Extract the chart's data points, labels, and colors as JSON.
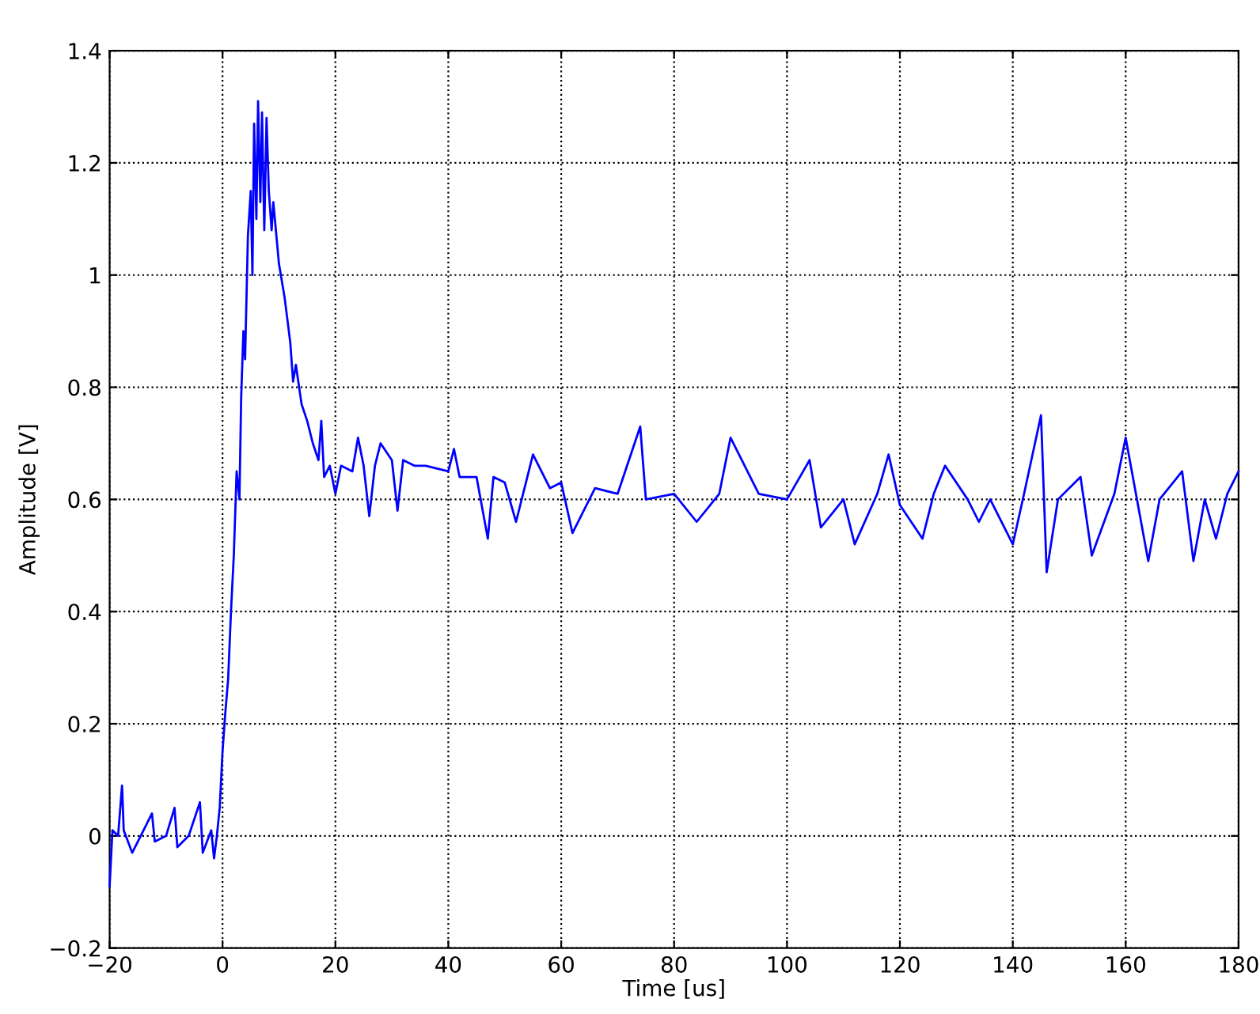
{
  "chart_data": {
    "type": "line",
    "xlabel": "Time [us]",
    "ylabel": "Amplitude [V]",
    "xlim": [
      -20,
      180
    ],
    "ylim": [
      -0.2,
      1.4
    ],
    "xticks": [
      {
        "value": -20,
        "label": "−20"
      },
      0,
      20,
      40,
      60,
      80,
      100,
      120,
      140,
      160,
      180
    ],
    "yticks": [
      {
        "value": -0.2,
        "label": "−0.2"
      },
      0,
      0.2,
      0.4,
      0.6,
      0.8,
      1,
      1.2,
      1.4
    ],
    "grid": true,
    "marker": "none",
    "line_style": "solid",
    "series": [
      {
        "color": "#0000ff",
        "x": [
          -20,
          -19.5,
          -18.5,
          -17.8,
          -17.5,
          -16,
          -14,
          -12.5,
          -12,
          -10,
          -8.5,
          -8,
          -6,
          -4,
          -3.5,
          -2,
          -1.5,
          -1,
          -0.5,
          0,
          0.5,
          1,
          1.5,
          2,
          2.5,
          3,
          3.3,
          3.7,
          4,
          4.5,
          5,
          5.3,
          5.6,
          6,
          6.3,
          6.7,
          7,
          7.4,
          7.8,
          8.2,
          8.7,
          9,
          10,
          11,
          12,
          12.5,
          13,
          14,
          15,
          16,
          17,
          17.5,
          18,
          19,
          20,
          21,
          23,
          24,
          25,
          26,
          27,
          28,
          30,
          31,
          32,
          34,
          36,
          40,
          41,
          42,
          45,
          47,
          48,
          50,
          52,
          55,
          58,
          60,
          62,
          66,
          70,
          74,
          75,
          80,
          84,
          88,
          90,
          95,
          100,
          104,
          106,
          110,
          112,
          116,
          118,
          120,
          124,
          126,
          128,
          132,
          134,
          136,
          140,
          142,
          145,
          146,
          148,
          152,
          154,
          158,
          160,
          164,
          166,
          170,
          172,
          174,
          176,
          178,
          180
        ],
        "values": [
          -0.09,
          0.01,
          0.0,
          0.09,
          0.01,
          -0.03,
          0.01,
          0.04,
          -0.01,
          0.0,
          0.05,
          -0.02,
          0.0,
          0.06,
          -0.03,
          0.01,
          -0.04,
          0.0,
          0.05,
          0.15,
          0.22,
          0.28,
          0.4,
          0.5,
          0.65,
          0.6,
          0.78,
          0.9,
          0.85,
          1.07,
          1.15,
          1.0,
          1.27,
          1.1,
          1.31,
          1.13,
          1.29,
          1.08,
          1.28,
          1.15,
          1.08,
          1.13,
          1.02,
          0.96,
          0.88,
          0.81,
          0.84,
          0.77,
          0.74,
          0.7,
          0.67,
          0.74,
          0.64,
          0.66,
          0.61,
          0.66,
          0.65,
          0.71,
          0.66,
          0.57,
          0.66,
          0.7,
          0.67,
          0.58,
          0.67,
          0.66,
          0.66,
          0.65,
          0.69,
          0.64,
          0.64,
          0.53,
          0.64,
          0.63,
          0.56,
          0.68,
          0.62,
          0.63,
          0.54,
          0.62,
          0.61,
          0.73,
          0.6,
          0.61,
          0.56,
          0.61,
          0.71,
          0.61,
          0.6,
          0.67,
          0.55,
          0.6,
          0.52,
          0.61,
          0.68,
          0.59,
          0.53,
          0.61,
          0.66,
          0.6,
          0.56,
          0.6,
          0.52,
          0.61,
          0.75,
          0.47,
          0.6,
          0.64,
          0.5,
          0.61,
          0.71,
          0.49,
          0.6,
          0.65,
          0.49,
          0.6,
          0.53,
          0.61,
          0.65
        ]
      }
    ]
  }
}
